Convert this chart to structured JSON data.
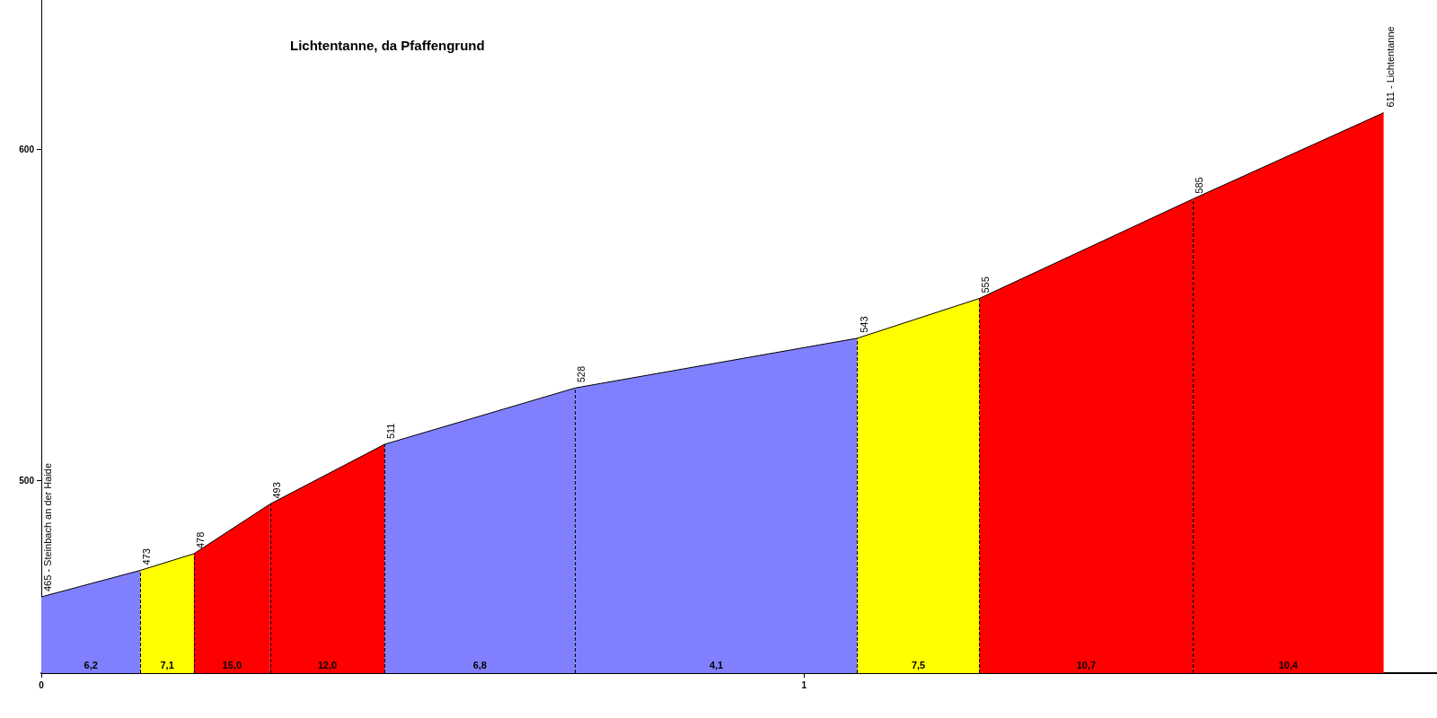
{
  "chart_data": {
    "type": "area",
    "title": "Lichtentanne, da Pfaffengrund",
    "series": [
      {
        "color": "#8080ff",
        "x": [
          0,
          0.13
        ],
        "values": [
          465,
          473
        ],
        "value_labels": [
          "465 - Steinbach an der Haide",
          "473"
        ]
      },
      {
        "color": "#ffff00",
        "x": [
          0.13,
          0.2
        ],
        "values": [
          473,
          478
        ],
        "value_labels": [
          null,
          "478"
        ]
      },
      {
        "color": "#ff0000",
        "x": [
          0.2,
          0.3
        ],
        "values": [
          478,
          493
        ],
        "value_labels": [
          null,
          "493"
        ]
      },
      {
        "color": "#ff0000",
        "x": [
          0.3,
          0.45
        ],
        "values": [
          493,
          511
        ],
        "value_labels": [
          null,
          "511"
        ]
      },
      {
        "color": "#8080ff",
        "x": [
          0.45,
          0.7
        ],
        "values": [
          511,
          528
        ],
        "value_labels": [
          null,
          "528"
        ]
      },
      {
        "color": "#8080ff",
        "x": [
          0.7,
          1.07
        ],
        "values": [
          528,
          543
        ],
        "value_labels": [
          null,
          "543"
        ]
      },
      {
        "color": "#ffff00",
        "x": [
          1.07,
          1.23
        ],
        "values": [
          543,
          555
        ],
        "value_labels": [
          null,
          "555"
        ]
      },
      {
        "color": "#ff0000",
        "x": [
          1.23,
          1.51
        ],
        "values": [
          555,
          585
        ],
        "value_labels": [
          null,
          "585"
        ]
      },
      {
        "color": "#ff0000",
        "x": [
          1.51,
          1.76
        ],
        "values": [
          585,
          611
        ],
        "value_labels": [
          null,
          "611 - Lichtentanne"
        ]
      }
    ],
    "annotations": [
      "6,2",
      "7,1",
      "15,0",
      "12,0",
      "6,8",
      "4,1",
      "7,5",
      "10,7",
      "10,4"
    ],
    "ref_lines": [
      {
        "axis": "x",
        "value": 0.13,
        "color": "#000000",
        "line_style": "dashed"
      },
      {
        "axis": "x",
        "value": 0.2,
        "color": "#000000",
        "line_style": "dashed"
      },
      {
        "axis": "x",
        "value": 0.3,
        "color": "#000000",
        "line_style": "dashed"
      },
      {
        "axis": "x",
        "value": 0.45,
        "color": "#000000",
        "line_style": "dashed"
      },
      {
        "axis": "x",
        "value": 0.7,
        "color": "#000000",
        "line_style": "dashed"
      },
      {
        "axis": "x",
        "value": 1.07,
        "color": "#000000",
        "line_style": "dashed"
      },
      {
        "axis": "x",
        "value": 1.23,
        "color": "#000000",
        "line_style": "dashed"
      },
      {
        "axis": "x",
        "value": 1.51,
        "color": "#000000",
        "line_style": "dashed"
      }
    ],
    "xlim": [
      0,
      1.83
    ],
    "xticks": [
      0,
      1
    ],
    "ylim": [
      442,
      645
    ],
    "yticks": [
      500,
      600
    ],
    "grid": false,
    "marker": "none"
  }
}
